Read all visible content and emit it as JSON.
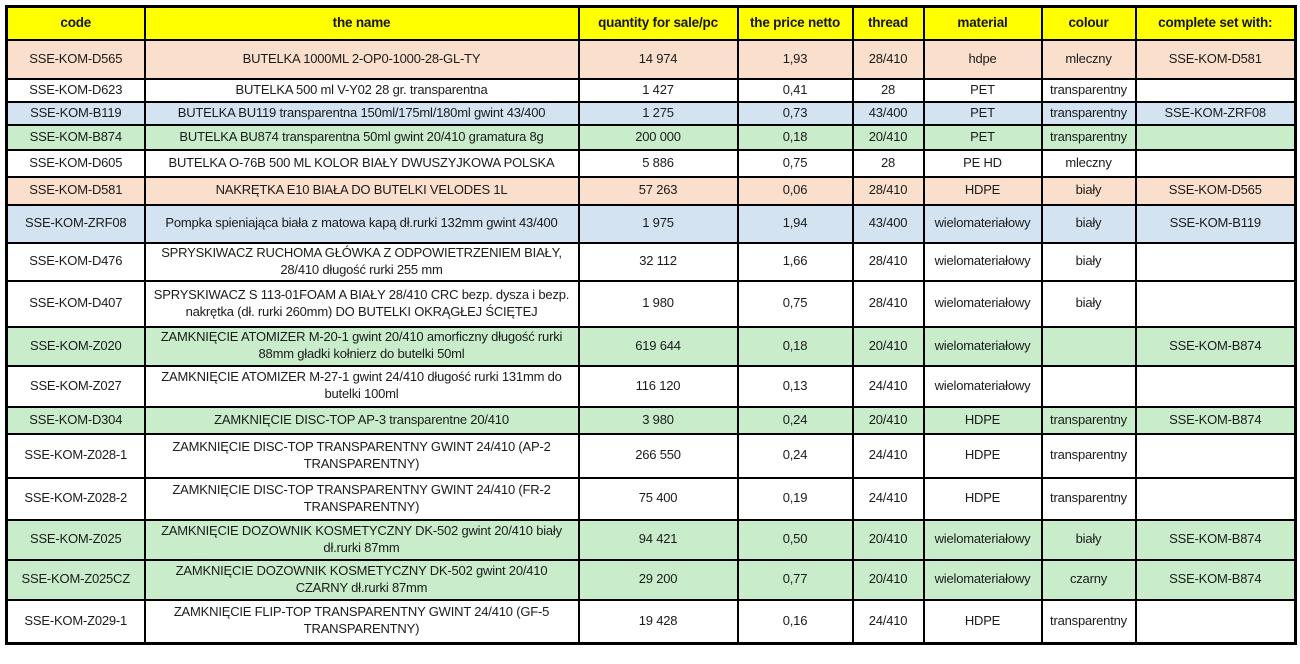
{
  "palette": {
    "header_bg": "#ffff00",
    "row_peach": "#fbdfcd",
    "row_blue": "#d3e3f2",
    "row_green": "#c9edcb",
    "row_white": "#ffffff",
    "border_color": "#000000",
    "text_color": "#1b1b1b"
  },
  "table": {
    "columns": [
      {
        "key": "code",
        "label": "code"
      },
      {
        "key": "name",
        "label": "the name"
      },
      {
        "key": "qty",
        "label": "quantity for sale/pc"
      },
      {
        "key": "price",
        "label": "the price netto"
      },
      {
        "key": "thread",
        "label": "thread"
      },
      {
        "key": "material",
        "label": "material"
      },
      {
        "key": "colour",
        "label": "colour"
      },
      {
        "key": "set_with",
        "label": "complete set with:"
      }
    ],
    "rows": [
      {
        "bg": "peach",
        "code": "SSE-KOM-D565",
        "name": "BUTELKA 1000ML 2-OP0-1000-28-GL-TY",
        "qty": "14 974",
        "price": "1,93",
        "thread": "28/410",
        "material": "hdpe",
        "colour": "mleczny",
        "set_with": "SSE-KOM-D581"
      },
      {
        "bg": "white",
        "code": "SSE-KOM-D623",
        "name": "BUTELKA 500 ml V-Y02 28 gr. transparentna",
        "qty": "1 427",
        "price": "0,41",
        "thread": "28",
        "material": "PET",
        "colour": "transparentny",
        "set_with": ""
      },
      {
        "bg": "blue",
        "code": "SSE-KOM-B119",
        "name": "BUTELKA BU119 transparentna 150ml/175ml/180ml gwint 43/400",
        "qty": "1 275",
        "price": "0,73",
        "thread": "43/400",
        "material": "PET",
        "colour": "transparentny",
        "set_with": "SSE-KOM-ZRF08"
      },
      {
        "bg": "green",
        "code": "SSE-KOM-B874",
        "name": "BUTELKA BU874 transparentna 50ml gwint 20/410 gramatura 8g",
        "qty": "200 000",
        "price": "0,18",
        "thread": "20/410",
        "material": "PET",
        "colour": "transparentny",
        "set_with": ""
      },
      {
        "bg": "white",
        "code": "SSE-KOM-D605",
        "name": "BUTELKA O-76B 500 ML KOLOR BIAŁY DWUSZYJKOWA POLSKA",
        "qty": "5 886",
        "price": "0,75",
        "thread": "28",
        "material": "PE HD",
        "colour": "mleczny",
        "set_with": ""
      },
      {
        "bg": "peach",
        "code": "SSE-KOM-D581",
        "name": "NAKRĘTKA E10 BIAŁA DO BUTELKI VELODES 1L",
        "qty": "57 263",
        "price": "0,06",
        "thread": "28/410",
        "material": "HDPE",
        "colour": "biały",
        "set_with": "SSE-KOM-D565"
      },
      {
        "bg": "blue",
        "code": "SSE-KOM-ZRF08",
        "name": "Pompka spieniająca biała z matowa kapą dł.rurki 132mm gwint 43/400",
        "qty": "1 975",
        "price": "1,94",
        "thread": "43/400",
        "material": "wielomateriałowy",
        "colour": "biały",
        "set_with": "SSE-KOM-B119"
      },
      {
        "bg": "white",
        "code": "SSE-KOM-D476",
        "name": "SPRYSKIWACZ RUCHOMA GŁÓWKA Z ODPOWIETRZENIEM BIAŁY, 28/410 długość rurki 255 mm",
        "qty": "32 112",
        "price": "1,66",
        "thread": "28/410",
        "material": "wielomateriałowy",
        "colour": "biały",
        "set_with": ""
      },
      {
        "bg": "white",
        "code": "SSE-KOM-D407",
        "name": "SPRYSKIWACZ S 113-01FOAM A BIAŁY 28/410 CRC bezp. dysza i bezp. nakrętka (dł. rurki 260mm) DO BUTELKI OKRĄGŁEJ ŚCIĘTEJ",
        "qty": "1 980",
        "price": "0,75",
        "thread": "28/410",
        "material": "wielomateriałowy",
        "colour": "biały",
        "set_with": ""
      },
      {
        "bg": "green",
        "code": "SSE-KOM-Z020",
        "name": "ZAMKNIĘCIE ATOMIZER M-20-1 gwint 20/410 amorficzny długość rurki 88mm gładki kołnierz do butelki 50ml",
        "qty": "619 644",
        "price": "0,18",
        "thread": "20/410",
        "material": "wielomateriałowy",
        "colour": "",
        "set_with": "SSE-KOM-B874"
      },
      {
        "bg": "white",
        "code": "SSE-KOM-Z027",
        "name": "ZAMKNIĘCIE ATOMIZER M-27-1 gwint 24/410 długość rurki 131mm do butelki 100ml",
        "qty": "116 120",
        "price": "0,13",
        "thread": "24/410",
        "material": "wielomateriałowy",
        "colour": "",
        "set_with": ""
      },
      {
        "bg": "green",
        "code": "SSE-KOM-D304",
        "name": "ZAMKNIĘCIE DISC-TOP AP-3 transparentne 20/410",
        "qty": "3 980",
        "price": "0,24",
        "thread": "20/410",
        "material": "HDPE",
        "colour": "transparentny",
        "set_with": "SSE-KOM-B874"
      },
      {
        "bg": "white",
        "code": "SSE-KOM-Z028-1",
        "name": "ZAMKNIĘCIE DISC-TOP TRANSPARENTNY GWINT 24/410 (AP-2 TRANSPARENTNY)",
        "qty": "266 550",
        "price": "0,24",
        "thread": "24/410",
        "material": "HDPE",
        "colour": "transparentny",
        "set_with": ""
      },
      {
        "bg": "white",
        "code": "SSE-KOM-Z028-2",
        "name": "ZAMKNIĘCIE DISC-TOP TRANSPARENTNY GWINT 24/410 (FR-2 TRANSPARENTNY)",
        "qty": "75 400",
        "price": "0,19",
        "thread": "24/410",
        "material": "HDPE",
        "colour": "transparentny",
        "set_with": ""
      },
      {
        "bg": "green",
        "code": "SSE-KOM-Z025",
        "name": "ZAMKNIĘCIE DOZOWNIK KOSMETYCZNY DK-502 gwint 20/410 biały dł.rurki 87mm",
        "qty": "94 421",
        "price": "0,50",
        "thread": "20/410",
        "material": "wielomateriałowy",
        "colour": "biały",
        "set_with": "SSE-KOM-B874"
      },
      {
        "bg": "green",
        "code": "SSE-KOM-Z025CZ",
        "name": "ZAMKNIĘCIE DOZOWNIK KOSMETYCZNY DK-502 gwint 20/410 CZARNY dł.rurki 87mm",
        "qty": "29 200",
        "price": "0,77",
        "thread": "20/410",
        "material": "wielomateriałowy",
        "colour": "czarny",
        "set_with": "SSE-KOM-B874"
      },
      {
        "bg": "white",
        "code": "SSE-KOM-Z029-1",
        "name": "ZAMKNIĘCIE FLIP-TOP TRANSPARENTNY GWINT 24/410 (GF-5 TRANSPARENTNY)",
        "qty": "19 428",
        "price": "0,16",
        "thread": "24/410",
        "material": "HDPE",
        "colour": "transparentny",
        "set_with": ""
      }
    ]
  }
}
